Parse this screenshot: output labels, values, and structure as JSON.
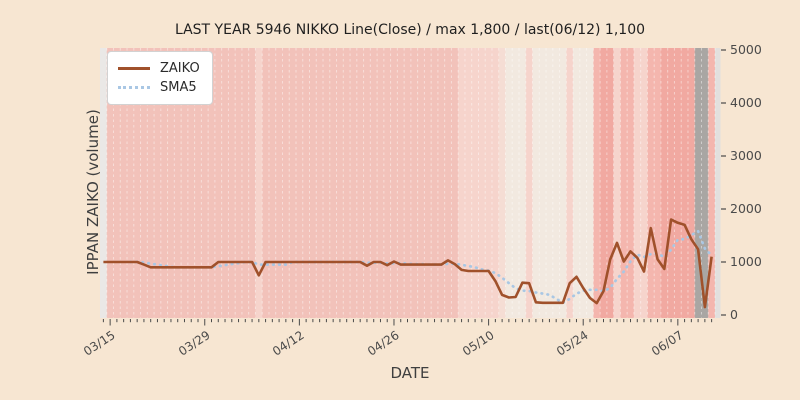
{
  "figure": {
    "title": "LAST YEAR 5946 NIKKO Line(Close) / max 1,800 / last(06/12) 1,100",
    "x_axis_label": "DATE",
    "y_axis_label": "IPPAN ZAIKO (volume)"
  },
  "legend": {
    "position": "upper-left",
    "items": [
      {
        "label": "ZAIKO",
        "style": "solid"
      },
      {
        "label": "SMA5",
        "style": "dotted"
      }
    ]
  },
  "colors": {
    "page_background": "#f7e6d2",
    "zaiko_line": "#a0512b",
    "sma5_line": "#a9c7e4",
    "tick_text": "#4a4a4a",
    "title_text": "#1f1f1f"
  },
  "chart_data": {
    "type": "line",
    "title": "LAST YEAR 5946 NIKKO Line(Close) / max 1,800 / last(06/12) 1,100",
    "xlabel": "DATE",
    "ylabel": "IPPAN ZAIKO (volume)",
    "ylim": [
      0,
      5000
    ],
    "y_tick_values": [
      0,
      1000,
      2000,
      3000,
      4000,
      5000
    ],
    "y_tick_labels": [
      "0",
      "1000",
      "2000",
      "3000",
      "4000",
      "5000"
    ],
    "x_tick_labels": [
      "03/15",
      "03/29",
      "04/12",
      "04/26",
      "05/10",
      "05/24",
      "06/07"
    ],
    "x_tick_day_indices": [
      1,
      15,
      29,
      43,
      57,
      71,
      85
    ],
    "grid": "vertical-daily-dashed-white",
    "legend_position": "upper-left",
    "max_value": 1800,
    "last_value": 1100,
    "last_date": "06/12",
    "series": [
      {
        "name": "ZAIKO",
        "style": "solid",
        "color": "#a0512b",
        "values": [
          1000,
          1000,
          1000,
          1000,
          1000,
          1000,
          950,
          900,
          900,
          900,
          900,
          900,
          900,
          900,
          900,
          900,
          900,
          1000,
          1000,
          1000,
          1000,
          1000,
          1000,
          750,
          1000,
          1000,
          1000,
          1000,
          1000,
          1000,
          1000,
          1000,
          1000,
          1000,
          1000,
          1000,
          1000,
          1000,
          1000,
          930,
          1000,
          1000,
          940,
          1010,
          950,
          950,
          950,
          950,
          950,
          950,
          950,
          1030,
          960,
          850,
          830,
          830,
          830,
          830,
          640,
          380,
          330,
          340,
          610,
          600,
          240,
          230,
          230,
          230,
          230,
          600,
          720,
          510,
          320,
          225,
          450,
          1050,
          1360,
          1010,
          1200,
          1080,
          820,
          1640,
          1050,
          870,
          1800,
          1740,
          1700,
          1430,
          1240,
          150,
          1100
        ]
      },
      {
        "name": "SMA5",
        "style": "dotted",
        "color": "#a9c7e4",
        "derived": "5-day moving average of ZAIKO"
      }
    ],
    "background_bands": {
      "palette": {
        "g": "#eae8e6",
        "p": "#f2c2ba",
        "l": "#f6d4cc",
        "d": "#f5ddd4",
        "c": "#f2e9e0",
        "m": "#f4b6ae",
        "s": "#f1a9a1",
        "G": "#a9a6a3",
        "f": "#e2e0de"
      },
      "codes": "gpppppppppppppppppppppplppppppppppppppppppppppppppppplllllldccclccccclcccmsslmmllmmsssssGGm"
    }
  }
}
